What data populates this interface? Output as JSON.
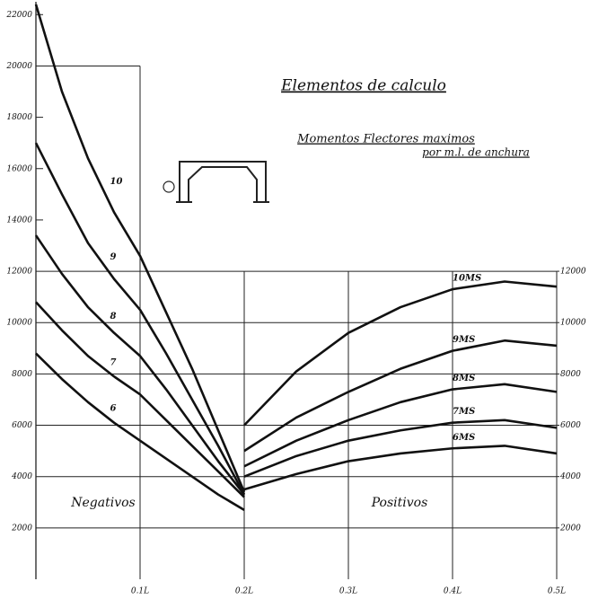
{
  "chart_data": {
    "type": "line",
    "title": "Elementos de calculo",
    "subtitle": [
      "Momentos Flectores maximos",
      "por m.l. de anchura"
    ],
    "annotations": [
      "Negativos",
      "Positivos"
    ],
    "xlim": [
      0,
      0.5
    ],
    "xticks": [
      {
        "value": 0.1,
        "label": "0.1L"
      },
      {
        "value": 0.2,
        "label": "0.2L"
      },
      {
        "value": 0.3,
        "label": "0.3L"
      },
      {
        "value": 0.4,
        "label": "0.4L"
      },
      {
        "value": 0.5,
        "label": "0.5L"
      }
    ],
    "ylim": [
      0,
      22500
    ],
    "yticks": [
      2000,
      4000,
      6000,
      8000,
      10000,
      12000,
      14000,
      16000,
      18000,
      20000,
      22000
    ],
    "y2lim": [
      0,
      22500
    ],
    "y2ticks": [
      2000,
      4000,
      6000,
      8000,
      10000,
      12000
    ],
    "color": "#111111",
    "series": [
      {
        "name": "10",
        "x": [
          0,
          0.025,
          0.05,
          0.075,
          0.1,
          0.125,
          0.15,
          0.175,
          0.2
        ],
        "values": [
          22400,
          19000,
          16400,
          14300,
          12600,
          10400,
          8200,
          5800,
          3400
        ]
      },
      {
        "name": "9",
        "x": [
          0,
          0.025,
          0.05,
          0.075,
          0.1,
          0.125,
          0.15,
          0.175,
          0.2
        ],
        "values": [
          17000,
          15000,
          13100,
          11700,
          10500,
          8800,
          7000,
          5200,
          3300
        ]
      },
      {
        "name": "8",
        "x": [
          0,
          0.025,
          0.05,
          0.075,
          0.1,
          0.125,
          0.15,
          0.175,
          0.2
        ],
        "values": [
          13400,
          11900,
          10600,
          9600,
          8700,
          7400,
          6000,
          4600,
          3300
        ]
      },
      {
        "name": "7",
        "x": [
          0,
          0.025,
          0.05,
          0.075,
          0.1,
          0.125,
          0.15,
          0.175,
          0.2
        ],
        "values": [
          10800,
          9700,
          8700,
          7900,
          7200,
          6200,
          5200,
          4200,
          3200
        ]
      },
      {
        "name": "6",
        "x": [
          0,
          0.025,
          0.05,
          0.075,
          0.1,
          0.125,
          0.15,
          0.175,
          0.2
        ],
        "values": [
          8800,
          7800,
          6900,
          6100,
          5400,
          4700,
          4000,
          3300,
          2700
        ]
      },
      {
        "name": "10MS",
        "x": [
          0.2,
          0.25,
          0.3,
          0.35,
          0.4,
          0.45,
          0.5
        ],
        "values": [
          6000,
          8100,
          9600,
          10600,
          11300,
          11600,
          11400
        ]
      },
      {
        "name": "9MS",
        "x": [
          0.2,
          0.25,
          0.3,
          0.35,
          0.4,
          0.45,
          0.5
        ],
        "values": [
          5000,
          6300,
          7300,
          8200,
          8900,
          9300,
          9100
        ]
      },
      {
        "name": "8MS",
        "x": [
          0.2,
          0.25,
          0.3,
          0.35,
          0.4,
          0.45,
          0.5
        ],
        "values": [
          4400,
          5400,
          6200,
          6900,
          7400,
          7600,
          7300
        ]
      },
      {
        "name": "7MS",
        "x": [
          0.2,
          0.25,
          0.3,
          0.35,
          0.4,
          0.45,
          0.5
        ],
        "values": [
          4000,
          4800,
          5400,
          5800,
          6100,
          6200,
          5900
        ]
      },
      {
        "name": "6MS",
        "x": [
          0.2,
          0.25,
          0.3,
          0.35,
          0.4,
          0.45,
          0.5
        ],
        "values": [
          3500,
          4100,
          4600,
          4900,
          5100,
          5200,
          4900
        ]
      }
    ]
  }
}
